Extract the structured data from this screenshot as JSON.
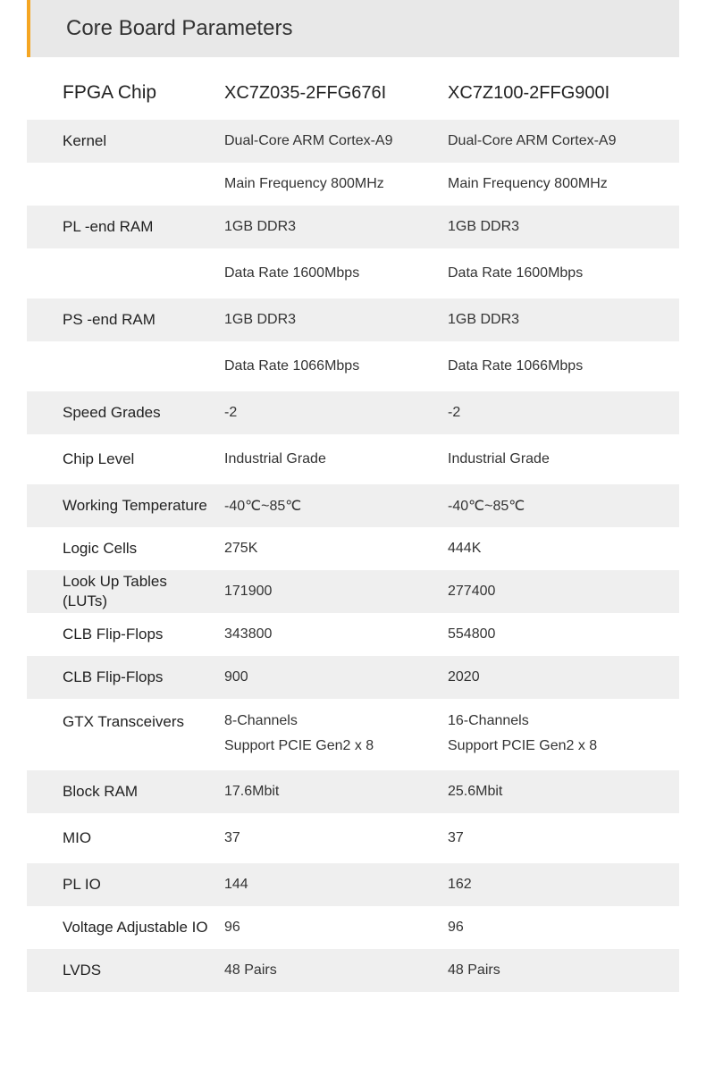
{
  "header": {
    "title": "Core Board Parameters"
  },
  "table": {
    "columns": {
      "label": "FPGA Chip",
      "chip1": "XC7Z035-2FFG676I",
      "chip2": "XC7Z100-2FFG900I"
    },
    "rows": [
      {
        "label": "Kernel",
        "v1": "Dual-Core ARM Cortex-A9",
        "v2": "Dual-Core ARM Cortex-A9",
        "shaded": true
      },
      {
        "label": "",
        "v1": "Main Frequency 800MHz",
        "v2": "Main Frequency 800MHz",
        "shaded": false
      },
      {
        "label": "PL -end RAM",
        "v1": "1GB DDR3",
        "v2": "1GB DDR3",
        "shaded": true
      },
      {
        "label": "",
        "v1": "Data Rate 1600Mbps",
        "v2": "Data Rate 1600Mbps",
        "shaded": false,
        "tall": true
      },
      {
        "label": "PS -end RAM",
        "v1": "1GB DDR3",
        "v2": "1GB DDR3",
        "shaded": true
      },
      {
        "label": "",
        "v1": "Data Rate 1066Mbps",
        "v2": "Data Rate 1066Mbps",
        "shaded": false,
        "tall": true
      },
      {
        "label": "Speed Grades",
        "v1": "-2",
        "v2": "-2",
        "shaded": true
      },
      {
        "label": "Chip Level",
        "v1": "Industrial Grade",
        "v2": "Industrial Grade",
        "shaded": false,
        "tall": true
      },
      {
        "label": "Working Temperature",
        "v1": "-40℃~85℃",
        "v2": "-40℃~85℃",
        "shaded": true,
        "multiline": true
      },
      {
        "label": "Logic Cells",
        "v1": "275K",
        "v2": "444K",
        "shaded": false
      },
      {
        "label": "Look Up Tables (LUTs)",
        "v1": "171900",
        "v2": "277400",
        "shaded": true,
        "multiline": true
      },
      {
        "label": "CLB Flip-Flops",
        "v1": "343800",
        "v2": "554800",
        "shaded": false
      },
      {
        "label": "CLB Flip-Flops",
        "v1": "900",
        "v2": "2020",
        "shaded": true
      },
      {
        "label": "GTX Transceivers",
        "v1a": "8-Channels",
        "v1b": "Support PCIE Gen2 x 8",
        "v2a": "16-Channels",
        "v2b": "Support PCIE Gen2 x 8",
        "shaded": false,
        "stacked": true
      },
      {
        "label": "Block RAM",
        "v1": "17.6Mbit",
        "v2": "25.6Mbit",
        "shaded": true
      },
      {
        "label": "MIO",
        "v1": "37",
        "v2": "37",
        "shaded": false,
        "tall": true
      },
      {
        "label": "PL IO",
        "v1": "144",
        "v2": "162",
        "shaded": true
      },
      {
        "label": "Voltage Adjustable IO",
        "v1": "96",
        "v2": "96",
        "shaded": false,
        "multiline": true
      },
      {
        "label": "LVDS",
        "v1": "48 Pairs",
        "v2": "48 Pairs",
        "shaded": true
      }
    ]
  }
}
